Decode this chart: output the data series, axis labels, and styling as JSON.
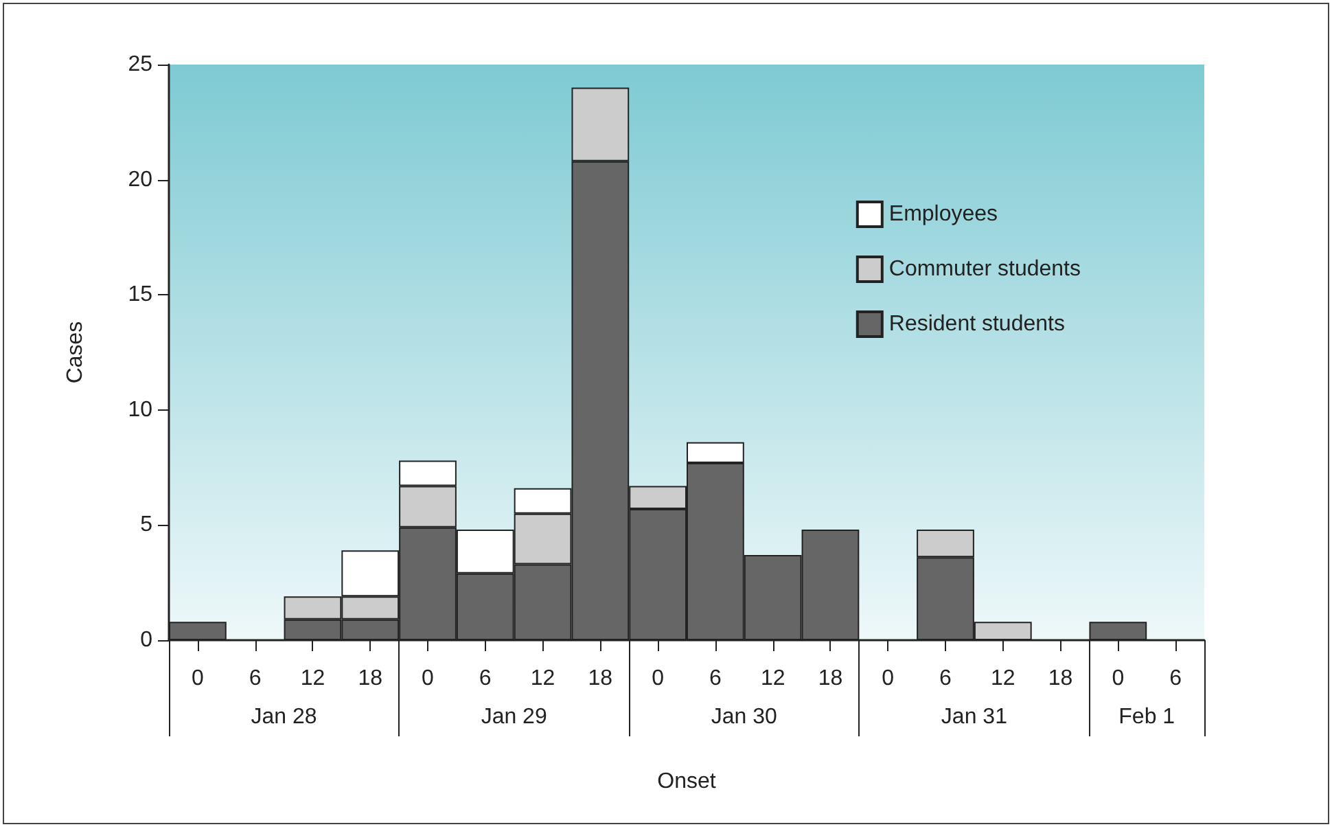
{
  "chart_data": {
    "type": "bar",
    "stacked": true,
    "xlabel": "Onset",
    "ylabel": "Cases",
    "categories": [
      "0",
      "6",
      "12",
      "18",
      "0",
      "6",
      "12",
      "18",
      "0",
      "6",
      "12",
      "18",
      "0",
      "6",
      "12",
      "18",
      "0",
      "6"
    ],
    "annotations": [
      "Jan 28",
      "Jan 29",
      "Jan 30",
      "Jan 31",
      "Feb 1"
    ],
    "series": [
      {
        "name": "Resident students",
        "color": "#666666",
        "values": [
          0.8,
          0,
          0.9,
          0.9,
          4.9,
          2.9,
          3.3,
          20.8,
          5.7,
          7.7,
          3.7,
          4.8,
          0,
          3.6,
          0,
          0,
          0.8,
          0
        ]
      },
      {
        "name": "Commuter students",
        "color": "#cccccc",
        "values": [
          0,
          0,
          1,
          1,
          1.8,
          0,
          2.2,
          3.2,
          1,
          0,
          0,
          0,
          0,
          1.2,
          0.8,
          0,
          0,
          0
        ]
      },
      {
        "name": "Employees",
        "color": "#ffffff",
        "values": [
          0,
          0,
          0,
          2,
          1.1,
          1.9,
          1.1,
          0,
          0,
          0.9,
          0,
          0,
          0,
          0,
          0,
          0,
          0,
          0
        ]
      }
    ],
    "ylim": [
      0,
      25
    ],
    "yticks": [
      0,
      5,
      10,
      15,
      20,
      25
    ],
    "grid": false,
    "legend": "top right"
  }
}
